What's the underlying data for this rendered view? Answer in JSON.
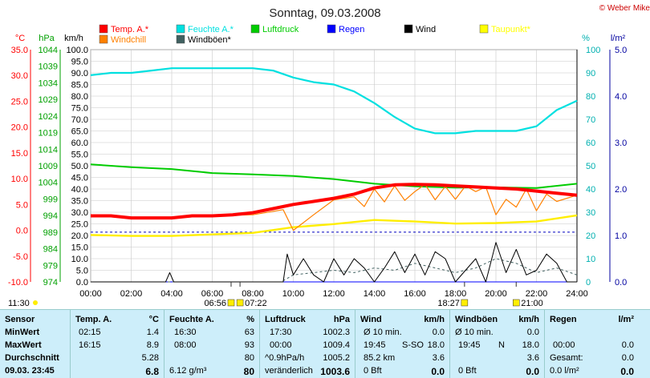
{
  "header": {
    "title": "Sonntag, 09.03.2008",
    "copyright": "© Weber Mike"
  },
  "axis_units": {
    "temp": "°C",
    "pressure": "hPa",
    "speed": "km/h",
    "percent": "%",
    "rain": "l/m²"
  },
  "chart_data": {
    "type": "line",
    "title": "Sonntag, 09.03.2008",
    "x_ticks": [
      "00:00",
      "02:00",
      "04:00",
      "06:00",
      "08:00",
      "10:00",
      "12:00",
      "14:00",
      "16:00",
      "18:00",
      "20:00",
      "22:00",
      "24:00"
    ],
    "xlim_hours": [
      0,
      24
    ],
    "axes": {
      "temp_c": {
        "ticks": [
          "35.0",
          "30.0",
          "25.0",
          "20.0",
          "15.0",
          "10.0",
          "5.0",
          "0.0",
          "-5.0",
          "-10.0"
        ],
        "range": [
          -10,
          35
        ],
        "color": "#ff0000"
      },
      "pressure_hpa": {
        "ticks": [
          "1044",
          "1039",
          "1034",
          "1029",
          "1024",
          "1019",
          "1014",
          "1009",
          "1004",
          "999",
          "994",
          "989",
          "984",
          "979",
          "974"
        ],
        "range": [
          974,
          1044
        ],
        "color": "#00a000"
      },
      "speed_kmh": {
        "ticks": [
          "100.0",
          "95.0",
          "90.0",
          "85.0",
          "80.0",
          "75.0",
          "70.0",
          "65.0",
          "60.0",
          "55.0",
          "50.0",
          "45.0",
          "40.0",
          "35.0",
          "30.0",
          "25.0",
          "20.0",
          "15.0",
          "10.0",
          "5.0",
          "0.0"
        ],
        "range": [
          0,
          100
        ],
        "color": "#000000"
      },
      "humidity_pct": {
        "ticks": [
          "100",
          "90",
          "80",
          "70",
          "60",
          "50",
          "40",
          "30",
          "20",
          "10",
          "0"
        ],
        "range": [
          0,
          100
        ],
        "color": "#00c8c8"
      },
      "rain_lm2": {
        "ticks": [
          "5.0",
          "4.0",
          "3.0",
          "2.0",
          "1.0",
          "0.0"
        ],
        "range": [
          0,
          5
        ],
        "color": "#0000a0"
      }
    },
    "legend": [
      {
        "name": "Temp. A.*",
        "color": "#ff0000"
      },
      {
        "name": "Feuchte A.*",
        "color": "#00e0e0"
      },
      {
        "name": "Luftdruck",
        "color": "#00cc00"
      },
      {
        "name": "Regen",
        "color": "#0000ff"
      },
      {
        "name": "Wind",
        "color": "#000000"
      },
      {
        "name": "Taupunkt*",
        "color": "#ffff00"
      },
      {
        "name": "Windchill",
        "color": "#ff8000"
      },
      {
        "name": "Windböen*",
        "color": "#406060"
      }
    ],
    "series": [
      {
        "name": "Temp. A.*",
        "axis": "temp_c",
        "x": [
          0,
          1,
          2,
          3,
          4,
          5,
          6,
          7,
          8,
          9,
          10,
          11,
          12,
          13,
          14,
          15,
          16,
          17,
          18,
          19,
          20,
          21,
          22,
          23,
          24
        ],
        "values": [
          2.8,
          2.8,
          2.4,
          2.4,
          2.4,
          2.8,
          2.8,
          3.0,
          3.4,
          4.2,
          5.0,
          5.6,
          6.2,
          7.0,
          8.2,
          8.8,
          8.9,
          8.8,
          8.6,
          8.4,
          8.2,
          8.0,
          7.6,
          7.2,
          6.8
        ]
      },
      {
        "name": "Feuchte A.*",
        "axis": "humidity_pct",
        "x": [
          0,
          1,
          2,
          3,
          4,
          5,
          6,
          7,
          8,
          9,
          10,
          11,
          12,
          13,
          14,
          15,
          16,
          17,
          18,
          19,
          20,
          21,
          22,
          23,
          24
        ],
        "values": [
          89,
          90,
          90,
          91,
          92,
          92,
          92,
          92,
          92,
          91,
          88,
          86,
          85,
          82,
          77,
          71,
          66,
          64,
          64,
          65,
          65,
          65,
          67,
          74,
          78
        ]
      },
      {
        "name": "Luftdruck",
        "axis": "pressure_hpa",
        "x": [
          0,
          2,
          4,
          6,
          8,
          10,
          12,
          14,
          16,
          18,
          20,
          22,
          24
        ],
        "values": [
          1009.4,
          1008.6,
          1008.0,
          1006.8,
          1006.4,
          1005.9,
          1005.0,
          1003.6,
          1002.8,
          1002.4,
          1002.5,
          1002.3,
          1003.6
        ]
      },
      {
        "name": "Taupunkt*",
        "axis": "temp_c",
        "x": [
          0,
          2,
          4,
          6,
          8,
          10,
          12,
          14,
          16,
          18,
          20,
          22,
          24
        ],
        "values": [
          -0.9,
          -1.1,
          -1.1,
          -0.8,
          -0.5,
          0.6,
          1.2,
          2.0,
          1.7,
          1.3,
          1.4,
          1.7,
          2.9
        ]
      },
      {
        "name": "Windchill",
        "axis": "temp_c",
        "x": [
          0,
          2,
          4,
          6,
          8,
          9.5,
          10,
          11,
          12,
          13,
          13.5,
          14,
          14.5,
          15,
          15.5,
          16,
          16.5,
          17,
          17.5,
          18,
          18.5,
          19,
          19.5,
          20,
          20.5,
          21,
          21.5,
          22,
          22.5,
          23,
          24
        ],
        "values": [
          2.8,
          2.4,
          2.4,
          2.8,
          3.0,
          4.0,
          0.0,
          3.0,
          5.9,
          6.5,
          4.6,
          8.0,
          5.5,
          8.6,
          5.8,
          7.5,
          8.9,
          5.9,
          8.5,
          6.0,
          8.6,
          7.5,
          8.4,
          3.0,
          6.0,
          4.5,
          8.0,
          3.8,
          7.0,
          5.6,
          6.8
        ]
      },
      {
        "name": "Wind",
        "axis": "speed_kmh",
        "x": [
          0,
          3.7,
          3.9,
          4.1,
          7.2,
          7.5,
          8,
          9,
          9.5,
          9.7,
          10,
          10.5,
          11,
          11.5,
          12,
          12.5,
          13,
          13.5,
          14,
          14.5,
          15,
          15.5,
          16,
          16.5,
          17,
          17.5,
          18,
          18.5,
          19,
          19.5,
          20,
          20.5,
          21,
          21.5,
          22,
          22.5,
          23,
          23.5,
          24
        ],
        "values": [
          0,
          0,
          4,
          0,
          0,
          0,
          0,
          0,
          0,
          12,
          3,
          10,
          3,
          0,
          10,
          3,
          10,
          6,
          0,
          6,
          13,
          4,
          12,
          3,
          13,
          10,
          0,
          5,
          10,
          0,
          17,
          4,
          14,
          3,
          5,
          12,
          8,
          0,
          0
        ]
      },
      {
        "name": "Windböen*",
        "axis": "speed_kmh",
        "x": [
          0,
          9.4,
          10,
          11,
          12,
          13,
          14,
          15,
          16,
          17,
          18,
          19,
          20,
          21,
          22,
          23,
          24
        ],
        "values": [
          0,
          0,
          3,
          4,
          5,
          4,
          6,
          5,
          8,
          6,
          4,
          6,
          10,
          8,
          4,
          6,
          3
        ]
      },
      {
        "name": "Regen",
        "axis": "rain_lm2",
        "x": [
          0,
          24
        ],
        "values": [
          0,
          0
        ]
      }
    ],
    "markers": [
      {
        "label": "06:56",
        "hour": 6.93
      },
      {
        "label": "07:22",
        "hour": 7.37
      },
      {
        "label": "18:27",
        "hour": 18.45
      },
      {
        "label": "21:00",
        "hour": 21.0
      }
    ],
    "left_marker": {
      "label": "11:30"
    },
    "reference_line_pressure": 989.0
  },
  "table": {
    "sensor": {
      "title": "Sensor",
      "rows": [
        "MinWert",
        "MaxWert",
        "Durchschnitt",
        "09.03. 23:45"
      ]
    },
    "temp": {
      "title": "Temp. A.",
      "unit": "°C",
      "rows": [
        [
          "02:15",
          "1.4"
        ],
        [
          "16:15",
          "8.9"
        ],
        [
          "",
          "5.28"
        ],
        [
          "",
          "6.8"
        ]
      ]
    },
    "feuchte": {
      "title": "Feuchte A.",
      "unit": "%",
      "rows": [
        [
          "16:30",
          "63"
        ],
        [
          "08:00",
          "93"
        ],
        [
          "",
          "80"
        ],
        [
          "6.12 g/m³",
          "80"
        ]
      ]
    },
    "luftdruck": {
      "title": "Luftdruck",
      "unit": "hPa",
      "rows": [
        [
          "17:30",
          "1002.3"
        ],
        [
          "00:00",
          "1009.4"
        ],
        [
          "^0.9hPa/h",
          "1005.2"
        ],
        [
          "veränderlich",
          "1003.6"
        ]
      ]
    },
    "wind": {
      "title": "Wind",
      "unit": "km/h",
      "rows": [
        [
          "Ø 10 min.",
          "",
          "0.0"
        ],
        [
          "19:45",
          "S-SO",
          "18.0"
        ],
        [
          "85.2 km",
          "",
          "3.6"
        ],
        [
          "0 Bft",
          "",
          "0.0"
        ]
      ]
    },
    "windboen": {
      "title": "Windböen",
      "unit": "km/h",
      "rows": [
        [
          "Ø 10 min.",
          "",
          "0.0"
        ],
        [
          "19:45",
          "N",
          "18.0"
        ],
        [
          "",
          "",
          "3.6"
        ],
        [
          "0 Bft",
          "",
          "0.0"
        ]
      ]
    },
    "regen": {
      "title": "Regen",
      "unit": "l/m²",
      "rows": [
        [
          "",
          ""
        ],
        [
          "00:00",
          "0.0"
        ],
        [
          "Gesamt:",
          "0.0"
        ],
        [
          "0.0 l/m²",
          "0.0"
        ]
      ]
    }
  }
}
